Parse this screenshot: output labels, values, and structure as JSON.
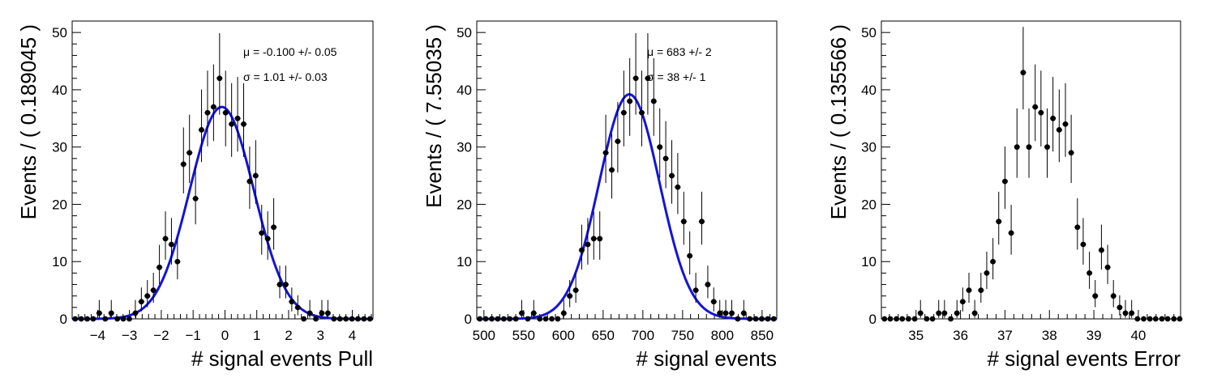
{
  "chart_data": [
    {
      "type": "scatter",
      "xlabel": "# signal events Pull",
      "ylabel": "Events / ( 0.189045 )",
      "xlim": [
        -4.8,
        4.65
      ],
      "ylim": [
        0,
        52
      ],
      "xticks": [
        -4,
        -3,
        -2,
        -1,
        0,
        1,
        2,
        3,
        4
      ],
      "yticks": [
        0,
        10,
        20,
        30,
        40,
        50
      ],
      "stats": [
        "μ = -0.100 +/- 0.05",
        "σ =  1.01 +/- 0.03"
      ],
      "fit": {
        "mean": -0.1,
        "sigma": 1.01,
        "amplitude": 37.0
      },
      "x": [
        -4.705,
        -4.516,
        -4.327,
        -4.138,
        -3.949,
        -3.76,
        -3.571,
        -3.382,
        -3.193,
        -3.004,
        -2.815,
        -2.626,
        -2.437,
        -2.248,
        -2.059,
        -1.87,
        -1.681,
        -1.492,
        -1.303,
        -1.114,
        -0.925,
        -0.736,
        -0.547,
        -0.358,
        -0.169,
        0.02,
        0.209,
        0.398,
        0.587,
        0.776,
        0.965,
        1.154,
        1.343,
        1.532,
        1.721,
        1.91,
        2.099,
        2.288,
        2.477,
        2.666,
        2.855,
        3.044,
        3.233,
        3.422,
        3.611,
        3.8,
        3.989,
        4.178,
        4.367,
        4.556
      ],
      "y": [
        0,
        0,
        0,
        0,
        1,
        0,
        1,
        0,
        0,
        0,
        1,
        3,
        4,
        5,
        9,
        14,
        13,
        10,
        27,
        29,
        21,
        33,
        36,
        37,
        42,
        36,
        34,
        35,
        34,
        24,
        25,
        15,
        14,
        16,
        6,
        6,
        3,
        2,
        0,
        1,
        0,
        1,
        1,
        0,
        0,
        0,
        0,
        0,
        0,
        0
      ]
    },
    {
      "type": "scatter",
      "xlabel": "# signal events",
      "ylabel": "Events / ( 7.55035 )",
      "xlim": [
        491,
        868.5
      ],
      "ylim": [
        0,
        52
      ],
      "xticks": [
        500,
        550,
        600,
        650,
        700,
        750,
        800,
        850
      ],
      "yticks": [
        0,
        10,
        20,
        30,
        40,
        50
      ],
      "stats": [
        "μ =  683 +/- 2",
        "σ =  38 +/- 1"
      ],
      "fit": {
        "mean": 683,
        "sigma": 38,
        "amplitude": 39.2
      },
      "x": [
        494.8,
        502.3,
        509.9,
        517.4,
        525.0,
        532.5,
        540.1,
        547.6,
        555.2,
        562.7,
        570.3,
        577.8,
        585.4,
        592.9,
        600.5,
        608.0,
        615.6,
        623.1,
        630.7,
        638.2,
        645.8,
        653.3,
        660.9,
        668.4,
        676.0,
        683.5,
        691.1,
        698.6,
        706.2,
        713.7,
        721.3,
        728.8,
        736.4,
        743.9,
        751.5,
        759.0,
        766.6,
        774.1,
        781.7,
        789.2,
        796.8,
        804.3,
        811.9,
        819.4,
        827.0,
        834.5,
        842.1,
        849.6,
        857.2,
        864.7
      ],
      "y": [
        0,
        0,
        0,
        0,
        0,
        0,
        0,
        1,
        0,
        1,
        0,
        0,
        0,
        0,
        1,
        4,
        5,
        12,
        13,
        14,
        14,
        29,
        26,
        31,
        36,
        38,
        42,
        36,
        42,
        38,
        30,
        28,
        25,
        23,
        17,
        11,
        5,
        17,
        6,
        3,
        1,
        1,
        1,
        0,
        1,
        0,
        0,
        0,
        0,
        0
      ]
    },
    {
      "type": "scatter",
      "xlabel": "# signal events Error",
      "ylabel": "Events / ( 0.135566 )",
      "xlim": [
        34.22,
        40.95
      ],
      "ylim": [
        0,
        52
      ],
      "xticks": [
        35,
        36,
        37,
        38,
        39,
        40
      ],
      "yticks": [
        0,
        10,
        20,
        30,
        40,
        50
      ],
      "stats": [],
      "x": [
        34.29,
        34.42,
        34.56,
        34.69,
        34.83,
        34.97,
        35.1,
        35.24,
        35.37,
        35.51,
        35.64,
        35.78,
        35.92,
        36.05,
        36.19,
        36.32,
        36.46,
        36.59,
        36.73,
        36.86,
        37.0,
        37.14,
        37.27,
        37.41,
        37.54,
        37.68,
        37.81,
        37.95,
        38.08,
        38.22,
        38.36,
        38.49,
        38.63,
        38.76,
        38.9,
        39.03,
        39.17,
        39.31,
        39.44,
        39.58,
        39.71,
        39.85,
        39.98,
        40.12,
        40.26,
        40.39,
        40.53,
        40.66,
        40.8,
        40.93
      ],
      "y": [
        0,
        0,
        0,
        0,
        0,
        0,
        1,
        0,
        0,
        1,
        1,
        0,
        1,
        3,
        5,
        1,
        5,
        8,
        10,
        17,
        24,
        15,
        30,
        43,
        30,
        37,
        36,
        30,
        35,
        33,
        34,
        29,
        16,
        13,
        8,
        4,
        12,
        9,
        4,
        2,
        1,
        1,
        0,
        0,
        0,
        0,
        0,
        0,
        0,
        0
      ]
    }
  ]
}
